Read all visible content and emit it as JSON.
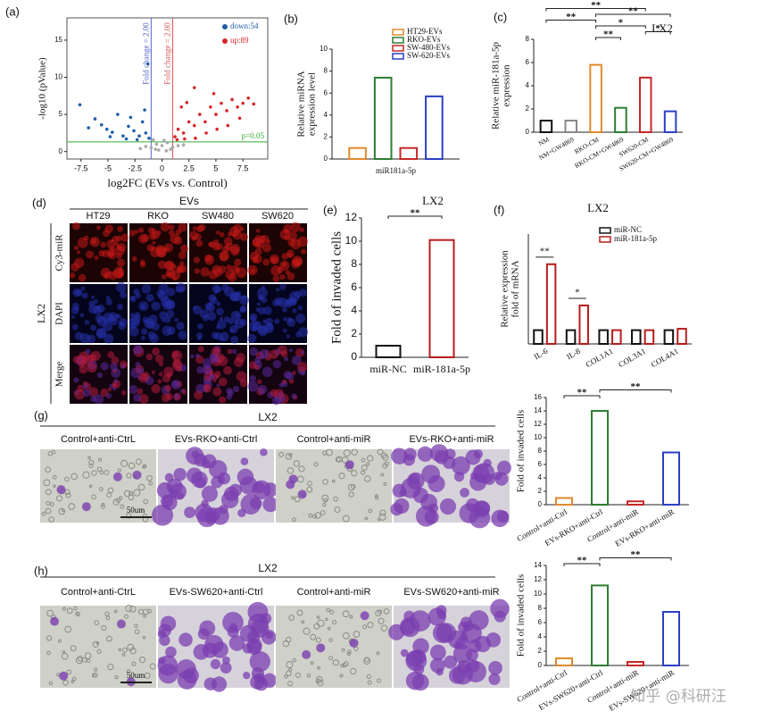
{
  "panel_labels": [
    "(a)",
    "(b)",
    "(c)",
    "(d)",
    "(e)",
    "(f)",
    "(g)",
    "(h)"
  ],
  "chart_data": [
    {
      "type": "scatter",
      "xlabel": "log2FC (EVs vs. Control)",
      "ylabel": "-log10 (pValue)",
      "xlim": [
        -8.8,
        9.8
      ],
      "ylim": [
        -1,
        18
      ],
      "xticks": [
        -7.5,
        -5,
        -2.5,
        0,
        2.5,
        5,
        7.5
      ],
      "yticks": [
        0,
        5,
        10,
        15
      ],
      "legend": "upper right",
      "series": [
        {
          "name": "down:54",
          "color": "#1f5fa8",
          "x": [
            -7.6,
            -6.2,
            -5.6,
            -5.1,
            -4.6,
            -4.1,
            -3.6,
            -3.1,
            -2.6,
            -2.1,
            -1.8,
            -1.5,
            -1.2,
            -2.3,
            -3.3,
            -4.8,
            -1.3,
            -6.8,
            -2.9,
            -1.6
          ],
          "y": [
            6.3,
            4.4,
            3.6,
            3.0,
            2.6,
            5.0,
            2.1,
            3.4,
            2.8,
            2.1,
            4.0,
            2.5,
            1.8,
            1.6,
            1.7,
            2.0,
            11.8,
            3.2,
            4.6,
            5.6
          ]
        },
        {
          "name": "up:89",
          "color": "#d62728",
          "x": [
            1.2,
            1.5,
            2.0,
            2.5,
            3.0,
            3.5,
            4.0,
            4.5,
            5.0,
            5.5,
            6.0,
            6.5,
            7.0,
            7.5,
            8.0,
            8.5,
            2.1,
            3.1,
            4.1,
            5.1,
            6.1,
            1.8,
            3.0,
            2.3,
            1.4,
            7.2,
            4.8
          ],
          "y": [
            2.0,
            3.0,
            2.5,
            4.0,
            3.5,
            5.0,
            4.0,
            6.0,
            5.0,
            6.5,
            5.5,
            7.0,
            6.0,
            6.5,
            7.2,
            6.4,
            1.7,
            1.8,
            2.5,
            3.0,
            3.5,
            6.0,
            8.6,
            6.6,
            1.6,
            4.5,
            7.8
          ]
        },
        {
          "color": "#a9a9a9",
          "x": [
            -1.0,
            -0.5,
            0,
            0.5,
            0.8,
            -0.3,
            0.2,
            -0.8,
            1.0,
            -1.5,
            1.5,
            -2.0,
            2.0,
            0.4,
            -0.6
          ],
          "y": [
            0.5,
            1.0,
            0.8,
            1.2,
            0.3,
            0.2,
            1.5,
            1.6,
            0.6,
            0.7,
            0.8,
            0.4,
            0.9,
            0.1,
            0.3
          ]
        }
      ],
      "vlines": [
        {
          "value": -1,
          "label": "Fold change = 2.00",
          "color": "#5566cc"
        },
        {
          "value": 1,
          "label": "Fold change = 2.00",
          "color": "#dd5555"
        }
      ],
      "hlines": [
        {
          "value": 1.3,
          "label": "p=0.05",
          "color": "#33aa33"
        }
      ]
    },
    {
      "type": "bar",
      "ylabel": [
        "Relative miRNA",
        "expression level"
      ],
      "categories": [
        "miR181a-5p"
      ],
      "ylim": [
        0,
        10
      ],
      "yticks": [
        0,
        2,
        4,
        6,
        8,
        10
      ],
      "series": [
        {
          "name": "HT29-EVs",
          "color": "#e08a2c",
          "values": [
            1.0
          ]
        },
        {
          "name": "RKO-EVs",
          "color": "#2e7d32",
          "values": [
            7.4
          ]
        },
        {
          "name": "SW-480-EVs",
          "color": "#c62828",
          "values": [
            1.0
          ]
        },
        {
          "name": "SW-620-EVs",
          "color": "#2b3fc4",
          "values": [
            5.7
          ]
        }
      ]
    },
    {
      "type": "bar",
      "title": "LX2",
      "ylabel": [
        "Relative miR-181a-5p",
        "expression"
      ],
      "categories": [
        "NM",
        "NM+GW4869",
        "RKO-CM",
        "RKO-CM+GW4869",
        "SW620-CM",
        "SW620-CM+GW4869"
      ],
      "values": [
        1.0,
        1.0,
        5.8,
        2.1,
        4.7,
        1.8
      ],
      "colors": [
        "#111111",
        "#888888",
        "#e08a2c",
        "#2e7d32",
        "#c62828",
        "#2b3fc4"
      ],
      "ylim": [
        0,
        8
      ],
      "yticks": [
        0,
        2,
        4,
        6,
        8
      ],
      "comparisons": [
        {
          "from": 2,
          "to": 3,
          "label": "**"
        },
        {
          "from": 4,
          "to": 5,
          "label": "*"
        },
        {
          "from": 2,
          "to": 4,
          "label": "*"
        },
        {
          "from": 0,
          "to": 2,
          "label": "**"
        },
        {
          "from": 2,
          "to": 5,
          "label": "**"
        },
        {
          "from": 0,
          "to": 4,
          "label": "**"
        }
      ]
    },
    {
      "type": "bar",
      "title": "LX2",
      "ylabel": "Fold of invaded cells",
      "categories": [
        "miR-NC",
        "miR-181a-5p"
      ],
      "values": [
        1.0,
        10.1
      ],
      "colors": [
        "#111111",
        "#b71c1c"
      ],
      "ylim": [
        0,
        12
      ],
      "yticks": [
        0,
        2,
        4,
        6,
        8,
        10,
        12
      ],
      "comparisons": [
        {
          "from": 0,
          "to": 1,
          "label": "**"
        }
      ]
    },
    {
      "type": "bar",
      "title": "LX2",
      "ylabel": [
        "Relative expression",
        "fold of mRNA"
      ],
      "categories": [
        "IL-6",
        "IL-8",
        "COL1A1",
        "COL3A1",
        "COL4A1"
      ],
      "series": [
        {
          "name": "miR-NC",
          "color": "#111111",
          "values": [
            1.0,
            1.0,
            1.0,
            1.0,
            1.0
          ]
        },
        {
          "name": "miR-181a-5p",
          "color": "#b71c1c",
          "values": [
            5.8,
            2.8,
            1.0,
            1.0,
            1.1
          ]
        }
      ],
      "ylim": [
        0,
        8
      ],
      "category_marks": [
        {
          "category": 0,
          "label": "**"
        },
        {
          "category": 1,
          "label": "*"
        }
      ]
    },
    {
      "type": "bar",
      "ylabel": "Fold of invaded cells",
      "categories": [
        "Control+anti-Ctrl",
        "EVs-RKO+anti-Ctrl",
        "Control+anti-miR",
        "EVs-RKO+anti-miR"
      ],
      "values": [
        1.0,
        14.0,
        0.5,
        7.8
      ],
      "colors": [
        "#e08a2c",
        "#2e7d32",
        "#c62828",
        "#2b3fc4"
      ],
      "ylim": [
        0,
        16
      ],
      "yticks": [
        0,
        2,
        4,
        6,
        8,
        10,
        12,
        14,
        16
      ],
      "comparisons": [
        {
          "from": 0,
          "to": 1,
          "label": "**"
        },
        {
          "from": 1,
          "to": 3,
          "label": "**"
        }
      ]
    },
    {
      "type": "bar",
      "ylabel": "Fold of invaded cells",
      "categories": [
        "Control+anti-Ctrl",
        "EVs-SW620+anti-Ctrl",
        "Control+anti-miR",
        "EVs-SW620+anti-miR"
      ],
      "values": [
        1.0,
        11.2,
        0.5,
        7.5
      ],
      "colors": [
        "#e08a2c",
        "#2e7d32",
        "#c62828",
        "#2b3fc4"
      ],
      "ylim": [
        0,
        14
      ],
      "yticks": [
        0,
        2,
        4,
        6,
        8,
        10,
        12,
        14
      ],
      "comparisons": [
        {
          "from": 0,
          "to": 1,
          "label": "**"
        },
        {
          "from": 1,
          "to": 3,
          "label": "**"
        }
      ]
    }
  ],
  "panel_d": {
    "header": "EVs",
    "columns": [
      "HT29",
      "RKO",
      "SW480",
      "SW620"
    ],
    "rows": [
      "Cy3-miR",
      "DAPI",
      "Merge"
    ],
    "cell_line": "LX2"
  },
  "panel_g": {
    "cell_line": "LX2",
    "columns": [
      "Control+anti-CtrL",
      "EVs-RKO+anti-Ctrl",
      "Control+anti-miR",
      "EVs-RKO+anti-miR"
    ],
    "scale_bar": "50um"
  },
  "panel_h": {
    "cell_line": "LX2",
    "columns": [
      "Control+anti-CtrL",
      "EVs-SW620+anti-Ctrl",
      "Control+anti-miR",
      "EVs-SW620+anti-miR"
    ],
    "scale_bar": "50um"
  },
  "watermark": "知乎 @科研汪"
}
